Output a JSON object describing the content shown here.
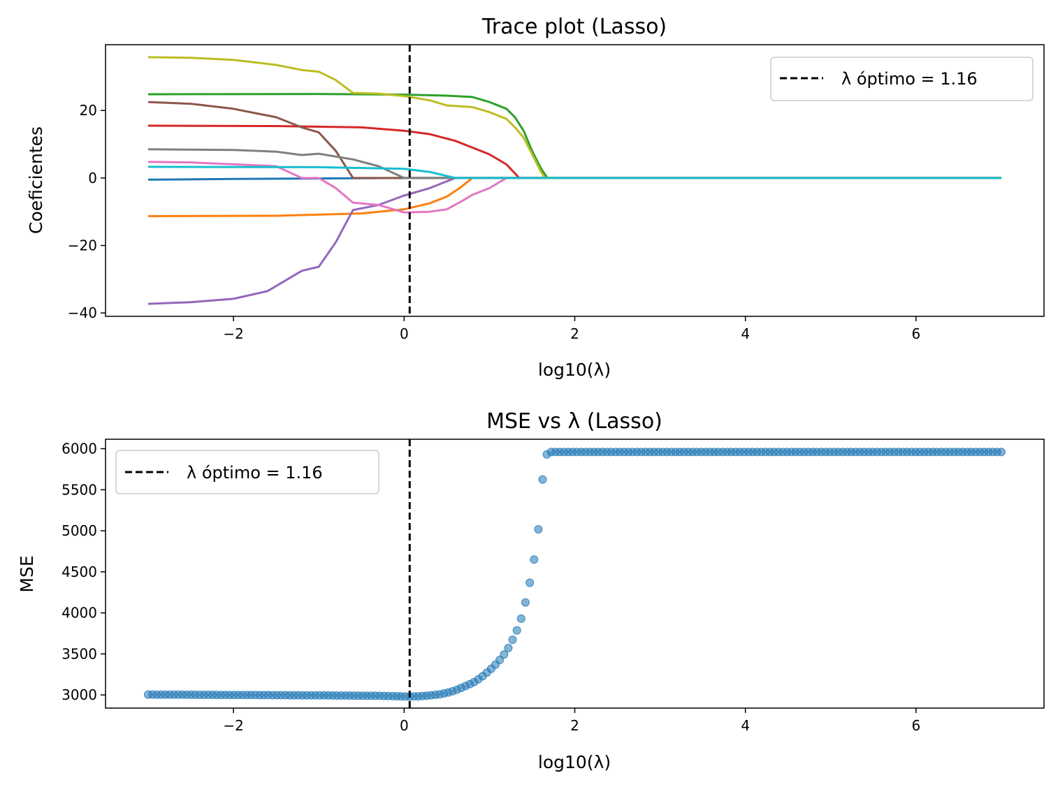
{
  "chart_data": [
    {
      "type": "line",
      "title": "Trace plot (Lasso)",
      "xlabel": "log10(λ)",
      "ylabel": "Coeficientes",
      "xlim": [
        -3.5,
        7.5
      ],
      "ylim": [
        -41,
        39.5
      ],
      "xticks": [
        -2,
        0,
        2,
        4,
        6
      ],
      "xtick_labels": [
        "−2",
        "0",
        "2",
        "4",
        "6"
      ],
      "yticks": [
        -40,
        -20,
        0,
        20
      ],
      "ytick_labels": [
        "−40",
        "−20",
        "0",
        "20"
      ],
      "grid": false,
      "legend": {
        "position": "upper right",
        "entries": [
          "λ óptimo = 1.16"
        ]
      },
      "vline": {
        "x": 0.065,
        "label": "λ óptimo = 1.16",
        "color": "#000000",
        "style": "dashed"
      },
      "series": [
        {
          "color": "#1f77b4",
          "points": [
            [
              -3,
              -0.5
            ],
            [
              -2,
              -0.3
            ],
            [
              0,
              0
            ],
            [
              7,
              0
            ]
          ]
        },
        {
          "color": "#ff7f0e",
          "points": [
            [
              -3,
              -11.3
            ],
            [
              -1.5,
              -11.2
            ],
            [
              -0.5,
              -10.5
            ],
            [
              0,
              -9.3
            ],
            [
              0.3,
              -7.5
            ],
            [
              0.5,
              -5.5
            ],
            [
              0.65,
              -3
            ],
            [
              0.8,
              0
            ],
            [
              7,
              0
            ]
          ]
        },
        {
          "color": "#2ca02c",
          "points": [
            [
              -3,
              24.8
            ],
            [
              -1,
              24.9
            ],
            [
              0,
              24.7
            ],
            [
              0.5,
              24.4
            ],
            [
              0.8,
              24
            ],
            [
              1.0,
              22.5
            ],
            [
              1.2,
              20.5
            ],
            [
              1.3,
              18
            ],
            [
              1.4,
              14
            ],
            [
              1.5,
              8
            ],
            [
              1.6,
              3
            ],
            [
              1.68,
              0
            ],
            [
              7,
              0
            ]
          ]
        },
        {
          "color": "#d62728",
          "points": [
            [
              -3,
              15.5
            ],
            [
              -1.5,
              15.4
            ],
            [
              -0.5,
              15
            ],
            [
              0,
              14
            ],
            [
              0.3,
              13
            ],
            [
              0.6,
              11
            ],
            [
              0.8,
              9
            ],
            [
              1.0,
              7
            ],
            [
              1.2,
              4
            ],
            [
              1.35,
              0
            ],
            [
              7,
              0
            ]
          ]
        },
        {
          "color": "#9467bd",
          "points": [
            [
              -3,
              -37.3
            ],
            [
              -2.5,
              -36.8
            ],
            [
              -2,
              -35.8
            ],
            [
              -1.6,
              -33.5
            ],
            [
              -1.4,
              -30.5
            ],
            [
              -1.2,
              -27.5
            ],
            [
              -1,
              -26.3
            ],
            [
              -0.8,
              -19
            ],
            [
              -0.6,
              -9.5
            ],
            [
              -0.3,
              -8
            ],
            [
              0,
              -5.2
            ],
            [
              0.3,
              -3
            ],
            [
              0.5,
              -1
            ],
            [
              0.6,
              0
            ],
            [
              7,
              0
            ]
          ]
        },
        {
          "color": "#8c564b",
          "points": [
            [
              -3,
              22.5
            ],
            [
              -2.5,
              22
            ],
            [
              -2,
              20.5
            ],
            [
              -1.5,
              18
            ],
            [
              -1.2,
              15
            ],
            [
              -1,
              13.5
            ],
            [
              -0.8,
              8
            ],
            [
              -0.6,
              0
            ],
            [
              7,
              0
            ]
          ]
        },
        {
          "color": "#e377c2",
          "points": [
            [
              -3,
              4.8
            ],
            [
              -2.5,
              4.6
            ],
            [
              -1.5,
              3.5
            ],
            [
              -1.2,
              0
            ],
            [
              -1,
              0
            ],
            [
              -0.8,
              -3
            ],
            [
              -0.6,
              -7.3
            ],
            [
              -0.3,
              -8
            ],
            [
              0,
              -10.2
            ],
            [
              0.3,
              -10
            ],
            [
              0.5,
              -9.3
            ],
            [
              0.7,
              -6.5
            ],
            [
              0.8,
              -5
            ],
            [
              1.0,
              -3
            ],
            [
              1.1,
              -1.5
            ],
            [
              1.2,
              0
            ],
            [
              7,
              0
            ]
          ]
        },
        {
          "color": "#7f7f7f",
          "points": [
            [
              -3,
              8.5
            ],
            [
              -2,
              8.3
            ],
            [
              -1.5,
              7.8
            ],
            [
              -1.2,
              6.8
            ],
            [
              -1,
              7.2
            ],
            [
              -0.6,
              5.5
            ],
            [
              -0.3,
              3.5
            ],
            [
              0,
              0
            ],
            [
              7,
              0
            ]
          ]
        },
        {
          "color": "#bcbd22",
          "points": [
            [
              -3,
              35.8
            ],
            [
              -2.5,
              35.6
            ],
            [
              -2,
              35
            ],
            [
              -1.5,
              33.5
            ],
            [
              -1.2,
              32
            ],
            [
              -1,
              31.5
            ],
            [
              -0.8,
              29
            ],
            [
              -0.6,
              25.2
            ],
            [
              -0.3,
              25
            ],
            [
              0,
              24.3
            ],
            [
              0.3,
              23
            ],
            [
              0.5,
              21.5
            ],
            [
              0.8,
              21
            ],
            [
              1.0,
              19.5
            ],
            [
              1.2,
              17.5
            ],
            [
              1.3,
              15
            ],
            [
              1.4,
              12
            ],
            [
              1.5,
              7
            ],
            [
              1.6,
              2
            ],
            [
              1.65,
              0
            ],
            [
              7,
              0
            ]
          ]
        },
        {
          "color": "#17becf",
          "points": [
            [
              -3,
              3.3
            ],
            [
              -1,
              3.2
            ],
            [
              0,
              2.7
            ],
            [
              0.3,
              1.8
            ],
            [
              0.6,
              0
            ],
            [
              7,
              0
            ]
          ]
        }
      ]
    },
    {
      "type": "scatter",
      "title": "MSE vs λ (Lasso)",
      "xlabel": "log10(λ)",
      "ylabel": "MSE",
      "xlim": [
        -3.5,
        7.5
      ],
      "ylim": [
        2840,
        6115
      ],
      "xticks": [
        -2,
        0,
        2,
        4,
        6
      ],
      "xtick_labels": [
        "−2",
        "0",
        "2",
        "4",
        "6"
      ],
      "yticks": [
        3000,
        3500,
        4000,
        4500,
        5000,
        5500,
        6000
      ],
      "ytick_labels": [
        "3000",
        "3500",
        "4000",
        "4500",
        "5000",
        "5500",
        "6000"
      ],
      "grid": false,
      "legend": {
        "position": "upper left",
        "entries": [
          "λ óptimo = 1.16"
        ]
      },
      "vline": {
        "x": 0.065,
        "label": "λ óptimo = 1.16",
        "color": "#000000",
        "style": "dashed"
      },
      "point_color": "#1f77b4",
      "x": {
        "start": -3,
        "stop": 7,
        "count": 200
      },
      "curve": [
        [
          -3,
          3005
        ],
        [
          -2,
          3000
        ],
        [
          -1,
          2995
        ],
        [
          -0.3,
          2990
        ],
        [
          0,
          2982
        ],
        [
          0.065,
          2980
        ],
        [
          0.2,
          2985
        ],
        [
          0.4,
          3005
        ],
        [
          0.5,
          3025
        ],
        [
          0.6,
          3055
        ],
        [
          0.7,
          3100
        ],
        [
          0.8,
          3145
        ],
        [
          0.9,
          3210
        ],
        [
          1.0,
          3300
        ],
        [
          1.1,
          3400
        ],
        [
          1.2,
          3530
        ],
        [
          1.3,
          3730
        ],
        [
          1.35,
          3860
        ],
        [
          1.4,
          4020
        ],
        [
          1.45,
          4260
        ],
        [
          1.5,
          4500
        ],
        [
          1.55,
          4830
        ],
        [
          1.6,
          5240
        ],
        [
          1.63,
          5740
        ],
        [
          1.68,
          5960
        ],
        [
          7,
          5960
        ]
      ]
    }
  ]
}
